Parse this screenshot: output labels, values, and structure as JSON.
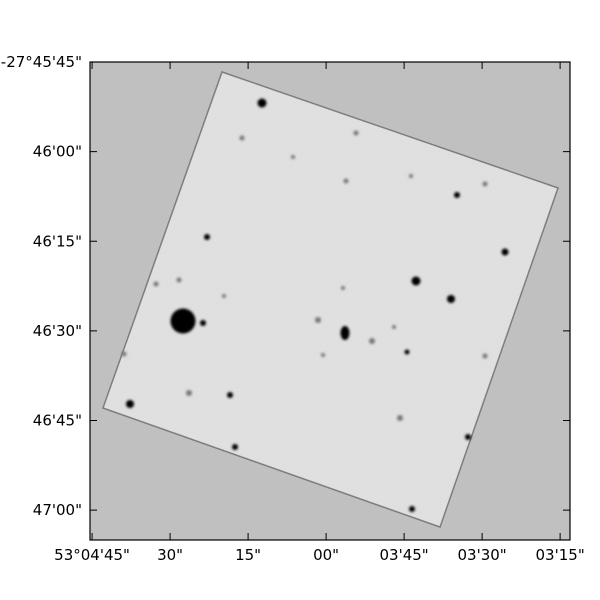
{
  "chart_data": {
    "type": "image",
    "xlim": [
      285.4,
      193.1
    ],
    "xticks": [
      {
        "value": 285,
        "label": "53°04'45\""
      },
      {
        "value": 270,
        "label": "30\""
      },
      {
        "value": 255,
        "label": "15\""
      },
      {
        "value": 240,
        "label": "00\""
      },
      {
        "value": 225,
        "label": "03'45\""
      },
      {
        "value": 210,
        "label": "03'30\""
      },
      {
        "value": 195,
        "label": "03'15\""
      }
    ],
    "ylim": [
      2825,
      2745
    ],
    "yticks": [
      {
        "value": 2745,
        "label": "-27°45'45\""
      },
      {
        "value": 2760,
        "label": "46'00\""
      },
      {
        "value": 2775,
        "label": "46'15\""
      },
      {
        "value": 2790,
        "label": "46'30\""
      },
      {
        "value": 2805,
        "label": "46'45\""
      },
      {
        "value": 2820,
        "label": "47'00\""
      }
    ]
  }
}
